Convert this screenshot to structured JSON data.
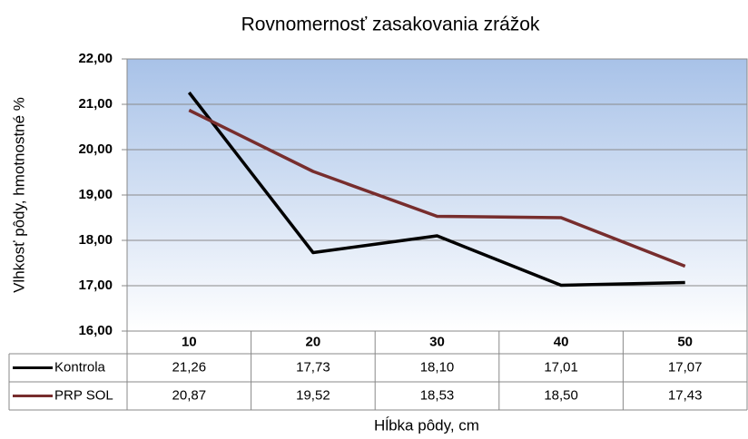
{
  "chart_data": {
    "type": "line",
    "title": "Rovnomernosť zasakovania zrážok",
    "y_label": "Vlhkosť pôdy, hmotnostné %",
    "x_label": "Hĺbka pôdy, cm",
    "categories": [
      "10",
      "20",
      "30",
      "40",
      "50"
    ],
    "series": [
      {
        "name": "Kontrola",
        "color": "#000000",
        "values": [
          21.26,
          17.73,
          18.1,
          17.01,
          17.07
        ],
        "value_labels": [
          "21,26",
          "17,73",
          "18,10",
          "17,01",
          "17,07"
        ]
      },
      {
        "name": "PRP SOL",
        "color": "#772d2d",
        "values": [
          20.87,
          19.52,
          18.53,
          18.5,
          17.43
        ],
        "value_labels": [
          "20,87",
          "19,52",
          "18,53",
          "18,50",
          "17,43"
        ]
      }
    ],
    "ylim": [
      16,
      22
    ],
    "yticks": [
      {
        "value": 16,
        "label": "16,00"
      },
      {
        "value": 17,
        "label": "17,00"
      },
      {
        "value": 18,
        "label": "18,00"
      },
      {
        "value": 19,
        "label": "19,00"
      },
      {
        "value": 20,
        "label": "20,00"
      },
      {
        "value": 21,
        "label": "21,00"
      },
      {
        "value": 22,
        "label": "22,00"
      }
    ],
    "grid": true,
    "data_table": true
  }
}
